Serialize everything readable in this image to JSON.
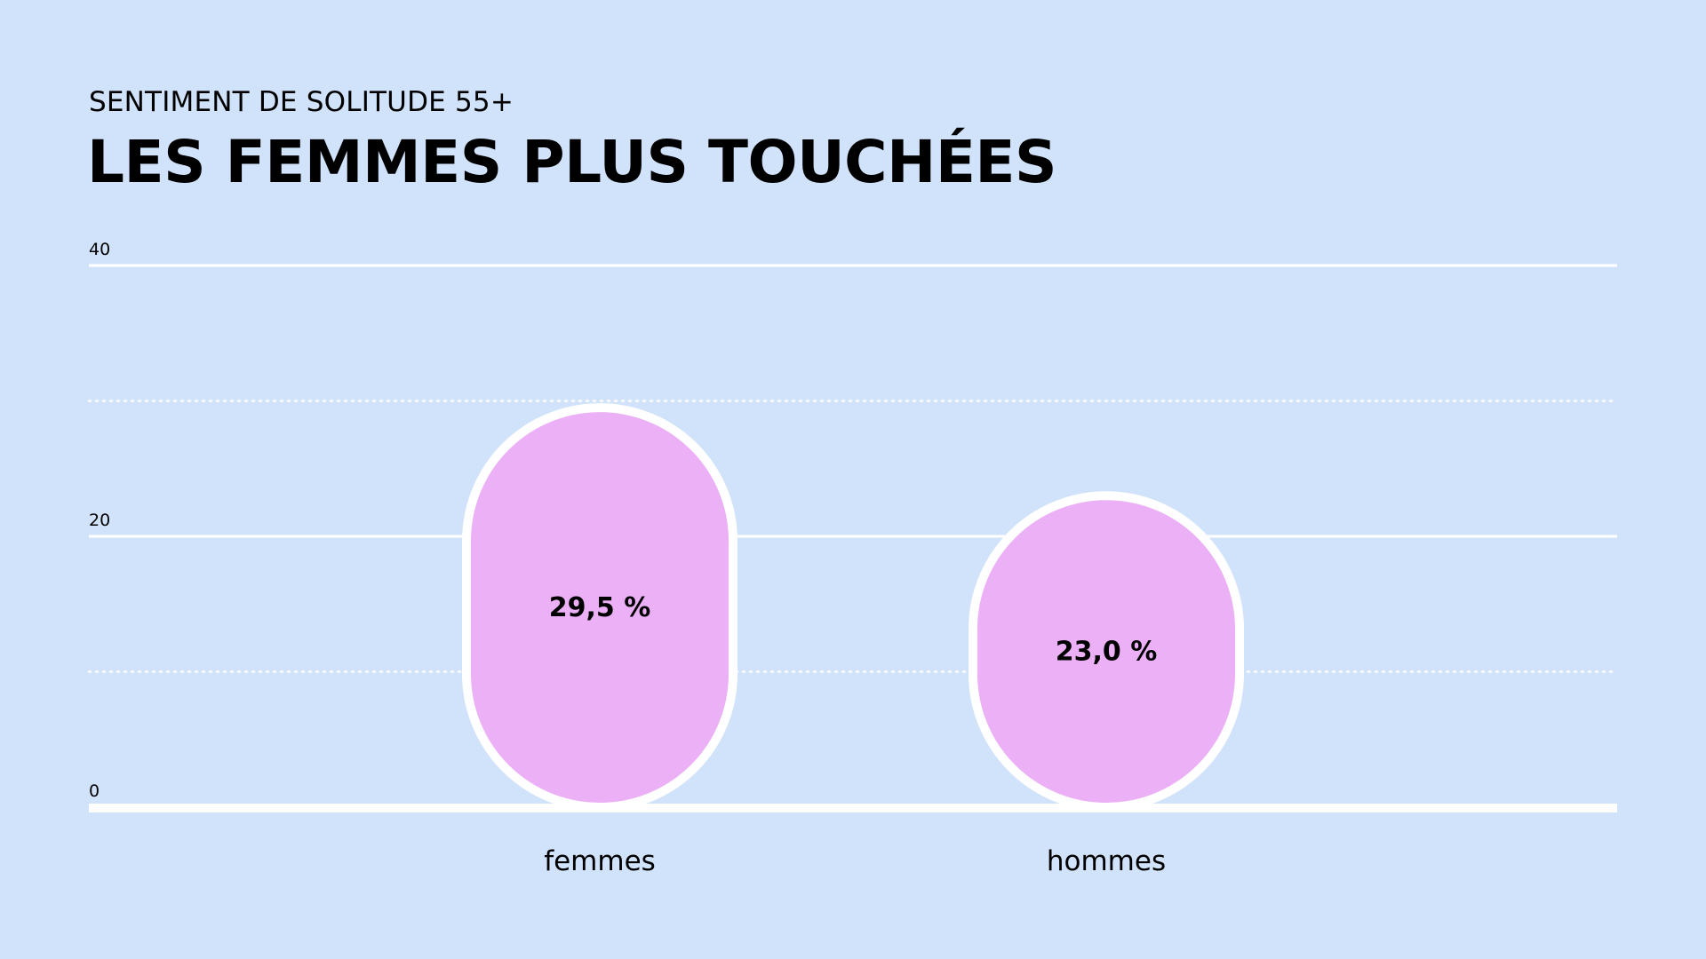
{
  "header": {
    "subtitle": "SENTIMENT DE SOLITUDE 55+",
    "title": "LES FEMMES PLUS TOUCHÉES"
  },
  "colors": {
    "background": "#d1e3fa",
    "bar_fill": "#ebb0f5",
    "bar_outline": "#ffffff",
    "gridline": "#ffffff"
  },
  "chart_data": {
    "type": "bar",
    "title": "LES FEMMES PLUS TOUCHÉES",
    "subtitle": "SENTIMENT DE SOLITUDE 55+",
    "categories": [
      "femmes",
      "hommes"
    ],
    "values": [
      29.5,
      23.0
    ],
    "value_labels": [
      "29,5 %",
      "23,0 %"
    ],
    "xlabel": "",
    "ylabel": "",
    "ylim": [
      0,
      40
    ],
    "y_ticks": [
      0,
      20,
      40
    ],
    "y_tick_labels": [
      "0",
      "20",
      "40"
    ],
    "minor_gridlines": [
      10,
      30
    ],
    "grid": true,
    "legend": "none"
  }
}
